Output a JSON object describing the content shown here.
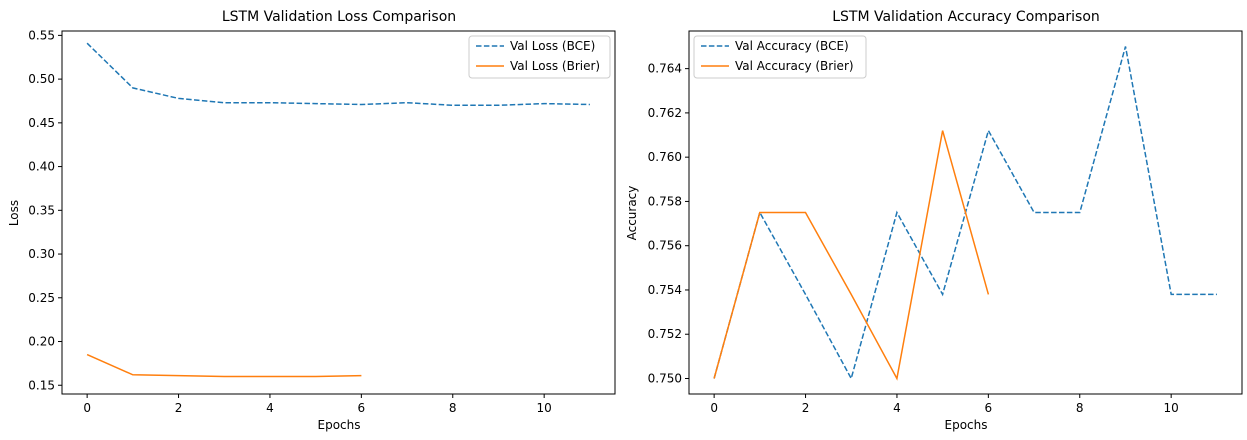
{
  "chart_data": [
    {
      "type": "line",
      "title": "LSTM Validation Loss Comparison",
      "xlabel": "Epochs",
      "ylabel": "Loss",
      "xlim": [
        -0.55,
        11.55
      ],
      "ylim": [
        0.14,
        0.555
      ],
      "xticks": [
        0,
        2,
        4,
        6,
        8,
        10
      ],
      "yticks": [
        0.15,
        0.2,
        0.25,
        0.3,
        0.35,
        0.4,
        0.45,
        0.5,
        0.55
      ],
      "ytick_decimals": 2,
      "legend_position": "top-right",
      "series": [
        {
          "name": "Val Loss (BCE)",
          "color": "#1f77b4",
          "linestyle": "dashed",
          "x": [
            0,
            1,
            2,
            3,
            4,
            5,
            6,
            7,
            8,
            9,
            10,
            11
          ],
          "values": [
            0.541,
            0.49,
            0.478,
            0.473,
            0.473,
            0.472,
            0.471,
            0.473,
            0.47,
            0.47,
            0.472,
            0.471
          ]
        },
        {
          "name": "Val Loss (Brier)",
          "color": "#ff7f0e",
          "linestyle": "solid",
          "x": [
            0,
            1,
            2,
            3,
            4,
            5,
            6
          ],
          "values": [
            0.185,
            0.162,
            0.161,
            0.16,
            0.16,
            0.16,
            0.161
          ]
        }
      ]
    },
    {
      "type": "line",
      "title": "LSTM Validation Accuracy Comparison",
      "xlabel": "Epochs",
      "ylabel": "Accuracy",
      "xlim": [
        -0.55,
        11.55
      ],
      "ylim": [
        0.7493,
        0.7657
      ],
      "xticks": [
        0,
        2,
        4,
        6,
        8,
        10
      ],
      "yticks": [
        0.75,
        0.752,
        0.754,
        0.756,
        0.758,
        0.76,
        0.762,
        0.764
      ],
      "ytick_decimals": 3,
      "legend_position": "top-left",
      "series": [
        {
          "name": "Val Accuracy (BCE)",
          "color": "#1f77b4",
          "linestyle": "dashed",
          "x": [
            0,
            1,
            2,
            3,
            4,
            5,
            6,
            7,
            8,
            9,
            10,
            11
          ],
          "values": [
            0.75,
            0.7575,
            0.7538,
            0.75,
            0.7575,
            0.7538,
            0.7612,
            0.7575,
            0.7575,
            0.765,
            0.7538,
            0.7538
          ]
        },
        {
          "name": "Val Accuracy (Brier)",
          "color": "#ff7f0e",
          "linestyle": "solid",
          "x": [
            0,
            1,
            2,
            3,
            4,
            5,
            6
          ],
          "values": [
            0.75,
            0.7575,
            0.7575,
            0.7538,
            0.75,
            0.7612,
            0.7538
          ]
        }
      ]
    }
  ]
}
